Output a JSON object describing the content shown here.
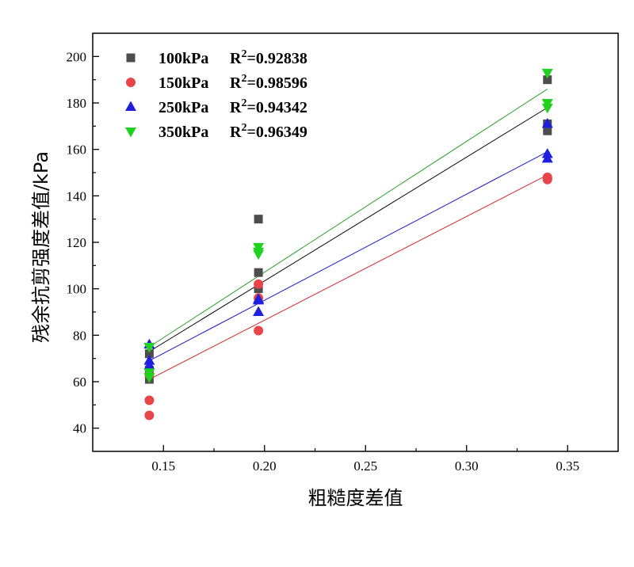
{
  "chart_data": {
    "type": "scatter",
    "title": "",
    "xlabel": "粗糙度差值",
    "ylabel": "残余抗剪强度差值/kPa",
    "xlim": [
      0.115,
      0.375
    ],
    "ylim": [
      30,
      210
    ],
    "xticks": [
      0.15,
      0.2,
      0.25,
      0.3,
      0.35
    ],
    "xtick_labels": [
      "0.15",
      "0.20",
      "0.25",
      "0.30",
      "0.35"
    ],
    "yticks": [
      40,
      60,
      80,
      100,
      120,
      140,
      160,
      180,
      200
    ],
    "ytick_labels": [
      "40",
      "60",
      "80",
      "100",
      "120",
      "140",
      "160",
      "180",
      "200"
    ],
    "legend_position": "top-left",
    "series": [
      {
        "name": "100kPa",
        "r2_label": "R",
        "r2_sup": "2",
        "r2_value": "=0.92838",
        "marker": "square",
        "color": "#4d4d4d",
        "fit_color": "#000000",
        "x": [
          0.143,
          0.143,
          0.143,
          0.197,
          0.197,
          0.197,
          0.34,
          0.34,
          0.34
        ],
        "y": [
          61,
          65,
          72,
          130,
          107,
          100,
          190,
          171,
          168
        ],
        "fit": {
          "x": [
            0.143,
            0.34
          ],
          "y": [
            73,
            178
          ]
        }
      },
      {
        "name": "150kPa",
        "r2_label": "R",
        "r2_sup": "2",
        "r2_value": "=0.98596",
        "marker": "circle",
        "color": "#e8454b",
        "fit_color": "#d62728",
        "x": [
          0.143,
          0.143,
          0.143,
          0.197,
          0.197,
          0.197,
          0.34,
          0.34,
          0.34
        ],
        "y": [
          45.5,
          52,
          63,
          102,
          96,
          82,
          148,
          147.5,
          147
        ],
        "fit": {
          "x": [
            0.143,
            0.34
          ],
          "y": [
            61,
            149
          ]
        }
      },
      {
        "name": "250kPa",
        "r2_label": "R",
        "r2_sup": "2",
        "r2_value": "=0.94342",
        "marker": "triangle-up",
        "color": "#1f1fe0",
        "fit_color": "#1a1ad0",
        "x": [
          0.143,
          0.143,
          0.143,
          0.197,
          0.197,
          0.197,
          0.34,
          0.34,
          0.34
        ],
        "y": [
          76,
          69,
          67,
          95,
          90,
          95.5,
          171,
          158,
          156
        ],
        "fit": {
          "x": [
            0.143,
            0.34
          ],
          "y": [
            69,
            159
          ]
        }
      },
      {
        "name": "350kPa",
        "r2_label": "R",
        "r2_sup": "2",
        "r2_value": "=0.96349",
        "marker": "triangle-down",
        "color": "#1ed21e",
        "fit_color": "#2aa02a",
        "x": [
          0.143,
          0.143,
          0.143,
          0.197,
          0.197,
          0.197,
          0.34,
          0.34,
          0.34
        ],
        "y": [
          75,
          64,
          62,
          118,
          116,
          115,
          193,
          180,
          178
        ],
        "fit": {
          "x": [
            0.143,
            0.34
          ],
          "y": [
            75,
            186
          ]
        }
      }
    ]
  }
}
